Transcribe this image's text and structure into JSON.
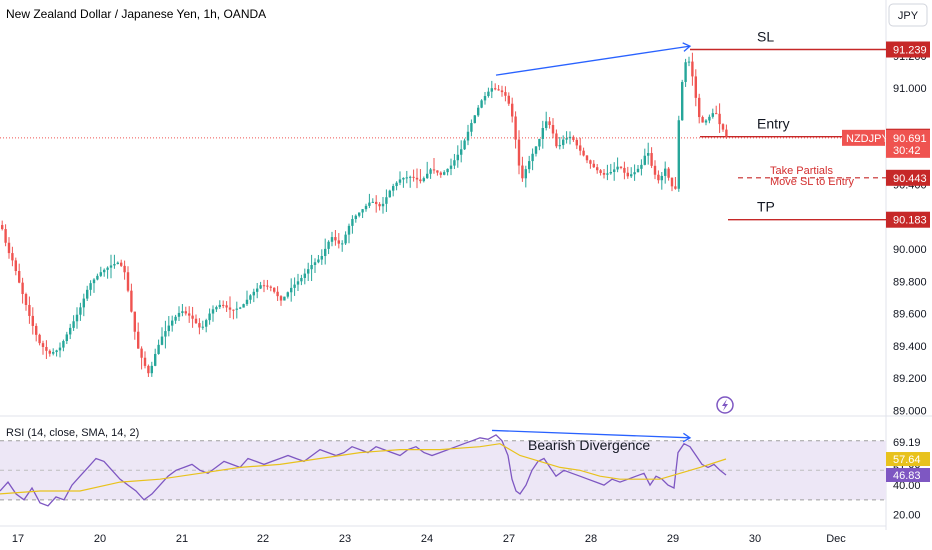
{
  "colors": {
    "up": "#26a69a",
    "down": "#ef5350",
    "level": "#c62828",
    "arrow": "#2962ff",
    "rsi": "#7e57c2",
    "rsi_ma": "#e8c21c",
    "rsi_band": "#ede7f6"
  },
  "header": {
    "title": "New Zealand Dollar / Japanese Yen, 1h, OANDA",
    "currency_button": "JPY"
  },
  "chart_data": [
    {
      "type": "candlestick",
      "title": "New Zealand Dollar / Japanese Yen, 1h, OANDA",
      "symbol": "NZDJPY",
      "ylim": [
        88.99,
        91.36
      ],
      "y_ticks": [
        "89.000",
        "89.200",
        "89.400",
        "89.600",
        "89.800",
        "90.000",
        "90.200",
        "90.400",
        "90.600",
        "91.000",
        "91.200"
      ],
      "x_ticks": [
        "17",
        "20",
        "21",
        "22",
        "23",
        "24",
        "27",
        "28",
        "29",
        "30",
        "Dec"
      ],
      "current_price": "90.691",
      "countdown": "30:42",
      "levels": [
        {
          "label": "SL",
          "value": 91.239,
          "badge": "91.239"
        },
        {
          "label": "Entry",
          "value": 90.698,
          "badge": "90.698"
        },
        {
          "label": "Take Partials",
          "label2": "Move SL to Entry",
          "value": 90.443,
          "badge": "90.443",
          "dashed": true
        },
        {
          "label": "TP",
          "value": 90.183,
          "badge": "90.183"
        }
      ],
      "price_path": [
        [
          0,
          90.15
        ],
        [
          6,
          90.0
        ],
        [
          12,
          89.92
        ],
        [
          20,
          89.75
        ],
        [
          30,
          89.55
        ],
        [
          38,
          89.42
        ],
        [
          48,
          89.35
        ],
        [
          58,
          89.38
        ],
        [
          68,
          89.5
        ],
        [
          78,
          89.62
        ],
        [
          88,
          89.78
        ],
        [
          100,
          89.86
        ],
        [
          110,
          89.9
        ],
        [
          118,
          89.92
        ],
        [
          124,
          89.85
        ],
        [
          130,
          89.62
        ],
        [
          136,
          89.4
        ],
        [
          142,
          89.3
        ],
        [
          148,
          89.22
        ],
        [
          154,
          89.35
        ],
        [
          160,
          89.45
        ],
        [
          170,
          89.55
        ],
        [
          180,
          89.62
        ],
        [
          190,
          89.58
        ],
        [
          200,
          89.5
        ],
        [
          210,
          89.62
        ],
        [
          220,
          89.66
        ],
        [
          230,
          89.62
        ],
        [
          240,
          89.64
        ],
        [
          250,
          89.72
        ],
        [
          260,
          89.78
        ],
        [
          270,
          89.76
        ],
        [
          280,
          89.68
        ],
        [
          290,
          89.76
        ],
        [
          300,
          89.82
        ],
        [
          310,
          89.9
        ],
        [
          320,
          89.95
        ],
        [
          330,
          90.08
        ],
        [
          340,
          90.02
        ],
        [
          350,
          90.18
        ],
        [
          360,
          90.24
        ],
        [
          370,
          90.3
        ],
        [
          380,
          90.26
        ],
        [
          390,
          90.38
        ],
        [
          400,
          90.44
        ],
        [
          410,
          90.45
        ],
        [
          420,
          90.42
        ],
        [
          430,
          90.5
        ],
        [
          440,
          90.46
        ],
        [
          450,
          90.52
        ],
        [
          460,
          90.62
        ],
        [
          470,
          90.78
        ],
        [
          480,
          90.92
        ],
        [
          490,
          91.0
        ],
        [
          500,
          90.98
        ],
        [
          506,
          90.94
        ],
        [
          512,
          90.8
        ],
        [
          516,
          90.6
        ],
        [
          520,
          90.42
        ],
        [
          526,
          90.52
        ],
        [
          532,
          90.6
        ],
        [
          538,
          90.68
        ],
        [
          544,
          90.8
        ],
        [
          550,
          90.76
        ],
        [
          556,
          90.62
        ],
        [
          562,
          90.68
        ],
        [
          570,
          90.7
        ],
        [
          578,
          90.62
        ],
        [
          586,
          90.55
        ],
        [
          594,
          90.5
        ],
        [
          602,
          90.46
        ],
        [
          610,
          90.48
        ],
        [
          618,
          90.52
        ],
        [
          626,
          90.45
        ],
        [
          634,
          90.48
        ],
        [
          640,
          90.52
        ],
        [
          646,
          90.62
        ],
        [
          652,
          90.48
        ],
        [
          658,
          90.42
        ],
        [
          664,
          90.5
        ],
        [
          670,
          90.4
        ],
        [
          674,
          90.35
        ],
        [
          678,
          90.85
        ],
        [
          682,
          91.1
        ],
        [
          686,
          91.2
        ],
        [
          690,
          91.12
        ],
        [
          694,
          90.96
        ],
        [
          698,
          90.82
        ],
        [
          702,
          90.78
        ],
        [
          708,
          90.82
        ],
        [
          714,
          90.86
        ],
        [
          718,
          90.78
        ],
        [
          722,
          90.74
        ],
        [
          726,
          90.69
        ]
      ],
      "arrow": {
        "from": [
          496,
          91.08
        ],
        "to": [
          690,
          91.26
        ]
      }
    },
    {
      "type": "line",
      "title": "RSI (14, close, SMA, 14, 2)",
      "ylim": [
        15,
        80
      ],
      "y_ticks": [
        "69.19",
        "57.64",
        "51.88",
        "46.83",
        "40.00",
        "20.00"
      ],
      "band": [
        30,
        70
      ],
      "badges": [
        {
          "value": 57.64,
          "label": "57.64"
        },
        {
          "value": 46.83,
          "label": "46.83"
        }
      ],
      "annotation": "Bearish Divergence",
      "series": [
        {
          "role": "rsi",
          "values": [
            [
              0,
              36
            ],
            [
              8,
              42
            ],
            [
              16,
              34
            ],
            [
              24,
              30
            ],
            [
              32,
              38
            ],
            [
              40,
              28
            ],
            [
              48,
              26
            ],
            [
              56,
              32
            ],
            [
              64,
              30
            ],
            [
              72,
              40
            ],
            [
              80,
              46
            ],
            [
              88,
              52
            ],
            [
              96,
              58
            ],
            [
              104,
              56
            ],
            [
              112,
              50
            ],
            [
              120,
              44
            ],
            [
              128,
              40
            ],
            [
              136,
              36
            ],
            [
              144,
              30
            ],
            [
              152,
              34
            ],
            [
              160,
              40
            ],
            [
              168,
              46
            ],
            [
              176,
              50
            ],
            [
              184,
              52
            ],
            [
              192,
              54
            ],
            [
              200,
              50
            ],
            [
              208,
              48
            ],
            [
              216,
              52
            ],
            [
              224,
              56
            ],
            [
              232,
              54
            ],
            [
              240,
              52
            ],
            [
              248,
              58
            ],
            [
              256,
              56
            ],
            [
              264,
              54
            ],
            [
              272,
              56
            ],
            [
              280,
              58
            ],
            [
              288,
              60
            ],
            [
              296,
              58
            ],
            [
              304,
              56
            ],
            [
              312,
              60
            ],
            [
              320,
              64
            ],
            [
              328,
              62
            ],
            [
              336,
              60
            ],
            [
              344,
              62
            ],
            [
              352,
              66
            ],
            [
              360,
              64
            ],
            [
              368,
              62
            ],
            [
              376,
              66
            ],
            [
              384,
              64
            ],
            [
              392,
              62
            ],
            [
              400,
              60
            ],
            [
              408,
              64
            ],
            [
              416,
              66
            ],
            [
              424,
              62
            ],
            [
              432,
              60
            ],
            [
              440,
              62
            ],
            [
              448,
              64
            ],
            [
              456,
              66
            ],
            [
              464,
              68
            ],
            [
              472,
              70
            ],
            [
              480,
              72
            ],
            [
              488,
              71
            ],
            [
              496,
              74
            ],
            [
              502,
              70
            ],
            [
              508,
              60
            ],
            [
              512,
              44
            ],
            [
              516,
              36
            ],
            [
              520,
              34
            ],
            [
              526,
              40
            ],
            [
              532,
              50
            ],
            [
              538,
              56
            ],
            [
              544,
              58
            ],
            [
              550,
              52
            ],
            [
              556,
              46
            ],
            [
              564,
              50
            ],
            [
              572,
              48
            ],
            [
              580,
              46
            ],
            [
              588,
              44
            ],
            [
              596,
              42
            ],
            [
              604,
              40
            ],
            [
              612,
              44
            ],
            [
              620,
              42
            ],
            [
              628,
              44
            ],
            [
              636,
              46
            ],
            [
              644,
              48
            ],
            [
              650,
              40
            ],
            [
              656,
              46
            ],
            [
              662,
              44
            ],
            [
              668,
              40
            ],
            [
              674,
              38
            ],
            [
              678,
              62
            ],
            [
              684,
              68
            ],
            [
              690,
              66
            ],
            [
              696,
              60
            ],
            [
              702,
              54
            ],
            [
              708,
              52
            ],
            [
              714,
              54
            ],
            [
              720,
              50
            ],
            [
              726,
              46.83
            ]
          ]
        },
        {
          "role": "rsi_ma",
          "values": [
            [
              0,
              34
            ],
            [
              40,
              36
            ],
            [
              80,
              36
            ],
            [
              120,
              42
            ],
            [
              160,
              44
            ],
            [
              200,
              48
            ],
            [
              240,
              52
            ],
            [
              280,
              54
            ],
            [
              320,
              58
            ],
            [
              360,
              62
            ],
            [
              400,
              64
            ],
            [
              440,
              64
            ],
            [
              480,
              66
            ],
            [
              500,
              68
            ],
            [
              520,
              60
            ],
            [
              540,
              56
            ],
            [
              560,
              52
            ],
            [
              580,
              50
            ],
            [
              600,
              46
            ],
            [
              620,
              44
            ],
            [
              640,
              44
            ],
            [
              660,
              44
            ],
            [
              680,
              48
            ],
            [
              700,
              52
            ],
            [
              726,
              57.64
            ]
          ]
        }
      ],
      "arrow": {
        "from": [
          492,
          77
        ],
        "to": [
          690,
          72
        ]
      }
    }
  ]
}
